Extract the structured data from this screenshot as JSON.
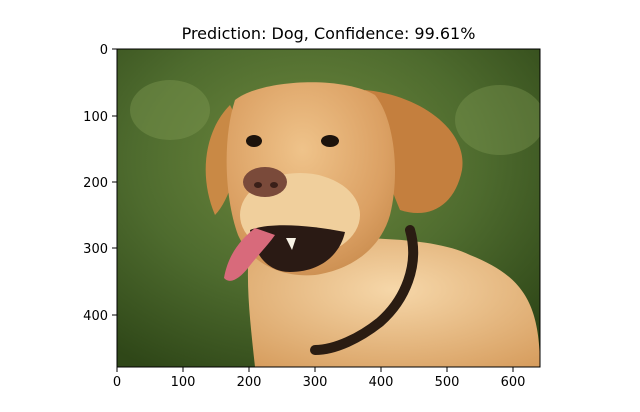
{
  "title": "Prediction: Dog, Confidence: 99.61%",
  "image": {
    "subject": "dog",
    "background_color": "#3f5a24",
    "fur_color": "#d79a56"
  },
  "axes": {
    "x_range": [
      0,
      640
    ],
    "y_range": [
      480,
      0
    ],
    "x_ticks": [
      "0",
      "100",
      "200",
      "300",
      "400",
      "500",
      "600"
    ],
    "y_ticks": [
      "0",
      "100",
      "200",
      "300",
      "400"
    ]
  }
}
